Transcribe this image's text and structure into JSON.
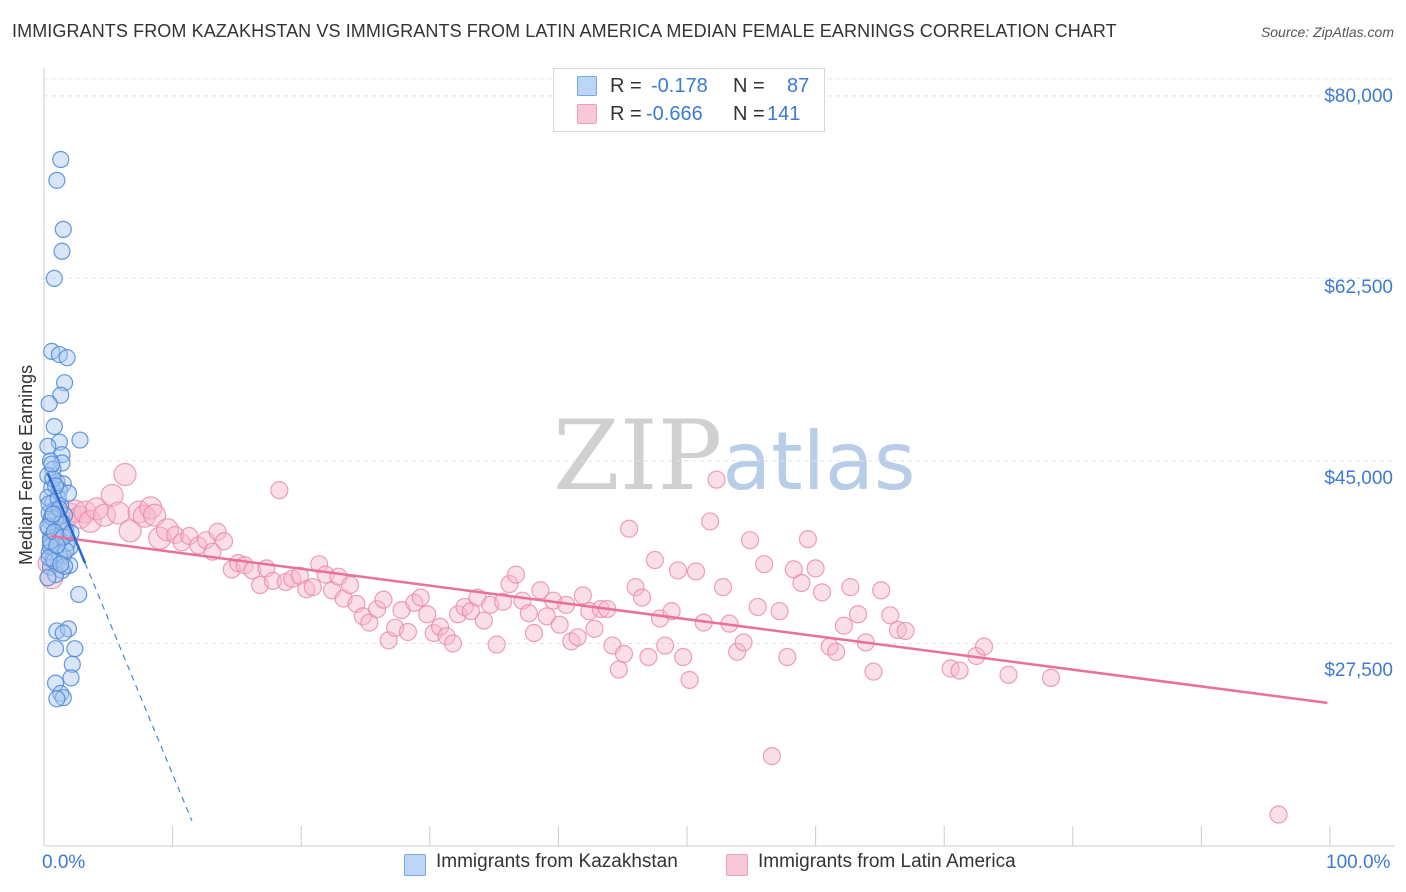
{
  "title": "IMMIGRANTS FROM KAZAKHSTAN VS IMMIGRANTS FROM LATIN AMERICA MEDIAN FEMALE EARNINGS CORRELATION CHART",
  "source": "Source: ZipAtlas.com",
  "watermark": {
    "zip": "ZIP",
    "atlas": "atlas"
  },
  "legend": {
    "r_label": "R =",
    "n_label": "N =",
    "series1": {
      "r": "-0.178",
      "n": "87"
    },
    "series2": {
      "r": "-0.666",
      "n": "141"
    }
  },
  "colors": {
    "series1_fill": "#a8c8f0",
    "series1_stroke": "#4a86d6",
    "series1_line": "#2a6ad0",
    "series2_fill": "#f6b8cc",
    "series2_stroke": "#e888a8",
    "series2_line": "#e8709a",
    "accent_text": "#3d7bd1"
  },
  "chart_data": {
    "type": "scatter",
    "title": "IMMIGRANTS FROM KAZAKHSTAN VS IMMIGRANTS FROM LATIN AMERICA MEDIAN FEMALE EARNINGS CORRELATION CHART",
    "xlabel": "",
    "ylabel": "Median Female Earnings",
    "xlim": [
      0,
      100
    ],
    "ylim": [
      10000,
      82000
    ],
    "x_tick_labels": [
      "0.0%",
      "100.0%"
    ],
    "y_ticks": [
      27500,
      45000,
      62500,
      80000
    ],
    "y_tick_labels": [
      "$27,500",
      "$45,000",
      "$62,500",
      "$80,000"
    ],
    "grid": true,
    "legend_position": "top-center",
    "series": [
      {
        "name": "Immigrants from Kazakhstan",
        "trend": {
          "x": [
            0.3,
            3.2
          ],
          "y": [
            43800,
            35200
          ],
          "dashed_extension": {
            "x": [
              3.2,
              11.5
            ],
            "y": [
              35200,
              10500
            ]
          }
        },
        "points": [
          [
            1.3,
            73900
          ],
          [
            1.0,
            71900
          ],
          [
            1.5,
            67200
          ],
          [
            1.4,
            65100
          ],
          [
            0.8,
            62500
          ],
          [
            0.6,
            55500
          ],
          [
            1.2,
            55200
          ],
          [
            1.8,
            54900
          ],
          [
            1.6,
            52500
          ],
          [
            1.3,
            51300
          ],
          [
            0.4,
            50500
          ],
          [
            0.8,
            48300
          ],
          [
            2.8,
            47000
          ],
          [
            1.2,
            46800
          ],
          [
            0.3,
            46400
          ],
          [
            1.4,
            45600
          ],
          [
            0.5,
            45000
          ],
          [
            1.4,
            44800
          ],
          [
            0.7,
            44200
          ],
          [
            0.3,
            43600
          ],
          [
            1.0,
            43000
          ],
          [
            1.5,
            42800
          ],
          [
            0.6,
            42400
          ],
          [
            1.2,
            42200
          ],
          [
            0.3,
            41500
          ],
          [
            0.7,
            41000
          ],
          [
            1.3,
            40700
          ],
          [
            0.8,
            40300
          ],
          [
            0.4,
            40000
          ],
          [
            1.6,
            39800
          ],
          [
            0.9,
            39400
          ],
          [
            0.5,
            39200
          ],
          [
            1.1,
            38900
          ],
          [
            0.4,
            38500
          ],
          [
            1.7,
            38300
          ],
          [
            0.8,
            38000
          ],
          [
            0.5,
            37600
          ],
          [
            1.3,
            37400
          ],
          [
            0.6,
            37000
          ],
          [
            2.0,
            36700
          ],
          [
            0.9,
            36500
          ],
          [
            0.4,
            36200
          ],
          [
            1.5,
            35900
          ],
          [
            0.7,
            35600
          ],
          [
            1.1,
            35300
          ],
          [
            2.0,
            35000
          ],
          [
            0.5,
            34800
          ],
          [
            1.4,
            34500
          ],
          [
            0.9,
            34100
          ],
          [
            0.3,
            33800
          ],
          [
            2.7,
            32200
          ],
          [
            1.0,
            28700
          ],
          [
            1.9,
            28900
          ],
          [
            1.5,
            28500
          ],
          [
            0.9,
            27000
          ],
          [
            2.4,
            27000
          ],
          [
            2.2,
            25500
          ],
          [
            2.1,
            24200
          ],
          [
            0.9,
            23700
          ],
          [
            1.3,
            22700
          ],
          [
            1.5,
            22300
          ],
          [
            1.0,
            22200
          ],
          [
            0.6,
            39600
          ],
          [
            1.0,
            37800
          ],
          [
            1.8,
            37100
          ],
          [
            0.5,
            36800
          ],
          [
            1.2,
            36100
          ],
          [
            0.8,
            35400
          ],
          [
            1.6,
            34900
          ],
          [
            0.4,
            40900
          ],
          [
            1.1,
            41400
          ],
          [
            0.7,
            43300
          ],
          [
            1.9,
            41900
          ],
          [
            0.3,
            38700
          ],
          [
            1.4,
            39100
          ],
          [
            0.6,
            44700
          ],
          [
            0.9,
            42600
          ],
          [
            1.7,
            36400
          ],
          [
            0.5,
            37300
          ],
          [
            1.2,
            40400
          ],
          [
            0.8,
            38200
          ],
          [
            1.5,
            37700
          ],
          [
            0.4,
            35700
          ],
          [
            1.0,
            36900
          ],
          [
            2.1,
            38100
          ],
          [
            0.7,
            39900
          ],
          [
            1.3,
            35100
          ]
        ]
      },
      {
        "name": "Immigrants from Latin America",
        "trend": {
          "x": [
            0.5,
            99.8
          ],
          "y": [
            37800,
            21800
          ]
        },
        "points": [
          [
            0.4,
            35200
          ],
          [
            0.6,
            33800
          ],
          [
            1.0,
            37600
          ],
          [
            1.3,
            38200
          ],
          [
            1.6,
            39400
          ],
          [
            2.0,
            39900
          ],
          [
            2.4,
            40200
          ],
          [
            2.8,
            39600
          ],
          [
            3.2,
            40100
          ],
          [
            3.6,
            39200
          ],
          [
            4.1,
            40400
          ],
          [
            4.7,
            39800
          ],
          [
            5.3,
            41700
          ],
          [
            5.8,
            40000
          ],
          [
            6.3,
            43700
          ],
          [
            6.7,
            38300
          ],
          [
            7.4,
            40100
          ],
          [
            7.8,
            39700
          ],
          [
            8.3,
            40500
          ],
          [
            8.6,
            39800
          ],
          [
            9.0,
            37600
          ],
          [
            9.6,
            38400
          ],
          [
            10.2,
            37900
          ],
          [
            10.7,
            37200
          ],
          [
            11.3,
            37800
          ],
          [
            12.0,
            36900
          ],
          [
            12.6,
            37400
          ],
          [
            13.1,
            36300
          ],
          [
            13.5,
            38200
          ],
          [
            14.0,
            37300
          ],
          [
            14.6,
            34600
          ],
          [
            15.1,
            35200
          ],
          [
            15.6,
            35000
          ],
          [
            16.2,
            34500
          ],
          [
            16.8,
            33100
          ],
          [
            17.3,
            34700
          ],
          [
            17.8,
            33500
          ],
          [
            18.3,
            42200
          ],
          [
            18.8,
            33400
          ],
          [
            19.3,
            33700
          ],
          [
            19.9,
            34000
          ],
          [
            20.4,
            32700
          ],
          [
            20.9,
            32900
          ],
          [
            21.4,
            35100
          ],
          [
            21.9,
            34100
          ],
          [
            22.4,
            32600
          ],
          [
            22.9,
            33900
          ],
          [
            23.3,
            31800
          ],
          [
            23.8,
            33100
          ],
          [
            24.3,
            31300
          ],
          [
            24.8,
            30100
          ],
          [
            25.3,
            29500
          ],
          [
            25.9,
            30800
          ],
          [
            26.4,
            31700
          ],
          [
            26.8,
            27800
          ],
          [
            27.3,
            29000
          ],
          [
            27.8,
            30700
          ],
          [
            28.3,
            28600
          ],
          [
            28.8,
            31400
          ],
          [
            29.3,
            31900
          ],
          [
            29.8,
            30300
          ],
          [
            30.3,
            28500
          ],
          [
            30.8,
            29100
          ],
          [
            31.3,
            28200
          ],
          [
            31.8,
            27500
          ],
          [
            32.2,
            30300
          ],
          [
            32.7,
            31000
          ],
          [
            33.2,
            30600
          ],
          [
            33.7,
            31900
          ],
          [
            34.2,
            29700
          ],
          [
            34.7,
            31200
          ],
          [
            35.2,
            27400
          ],
          [
            35.7,
            31500
          ],
          [
            36.2,
            33200
          ],
          [
            36.7,
            34100
          ],
          [
            37.2,
            31600
          ],
          [
            37.7,
            30400
          ],
          [
            38.1,
            28500
          ],
          [
            38.6,
            32600
          ],
          [
            39.1,
            30100
          ],
          [
            39.6,
            31600
          ],
          [
            40.1,
            29300
          ],
          [
            40.6,
            31200
          ],
          [
            41.0,
            27700
          ],
          [
            41.5,
            28100
          ],
          [
            41.9,
            32100
          ],
          [
            42.4,
            30600
          ],
          [
            42.8,
            28900
          ],
          [
            43.3,
            30800
          ],
          [
            43.8,
            30800
          ],
          [
            44.2,
            27300
          ],
          [
            44.7,
            25000
          ],
          [
            45.1,
            26500
          ],
          [
            45.5,
            38500
          ],
          [
            46.0,
            32900
          ],
          [
            46.5,
            31900
          ],
          [
            47.0,
            26200
          ],
          [
            47.5,
            35500
          ],
          [
            47.9,
            29900
          ],
          [
            48.3,
            27300
          ],
          [
            48.8,
            30600
          ],
          [
            49.3,
            34500
          ],
          [
            49.7,
            26200
          ],
          [
            50.2,
            24000
          ],
          [
            50.7,
            34400
          ],
          [
            51.3,
            29500
          ],
          [
            51.8,
            39200
          ],
          [
            52.3,
            43200
          ],
          [
            52.8,
            32900
          ],
          [
            53.3,
            29400
          ],
          [
            53.9,
            26700
          ],
          [
            54.4,
            27600
          ],
          [
            54.9,
            37400
          ],
          [
            55.5,
            31000
          ],
          [
            56.0,
            35100
          ],
          [
            56.6,
            16700
          ],
          [
            57.2,
            30600
          ],
          [
            57.8,
            26200
          ],
          [
            58.3,
            34600
          ],
          [
            58.9,
            33300
          ],
          [
            59.4,
            37500
          ],
          [
            60.0,
            34700
          ],
          [
            60.5,
            32400
          ],
          [
            61.1,
            27200
          ],
          [
            61.6,
            26700
          ],
          [
            62.2,
            29200
          ],
          [
            62.7,
            32900
          ],
          [
            63.3,
            30300
          ],
          [
            63.9,
            27600
          ],
          [
            64.5,
            24800
          ],
          [
            65.1,
            32600
          ],
          [
            65.8,
            30200
          ],
          [
            66.4,
            28800
          ],
          [
            67.0,
            28700
          ],
          [
            70.5,
            25100
          ],
          [
            71.2,
            24900
          ],
          [
            72.5,
            26300
          ],
          [
            73.1,
            27200
          ],
          [
            75.0,
            24500
          ],
          [
            78.3,
            24200
          ],
          [
            96.0,
            11100
          ]
        ]
      }
    ]
  },
  "bottom_legend": {
    "series1": "Immigrants from Kazakhstan",
    "series2": "Immigrants from Latin America"
  }
}
